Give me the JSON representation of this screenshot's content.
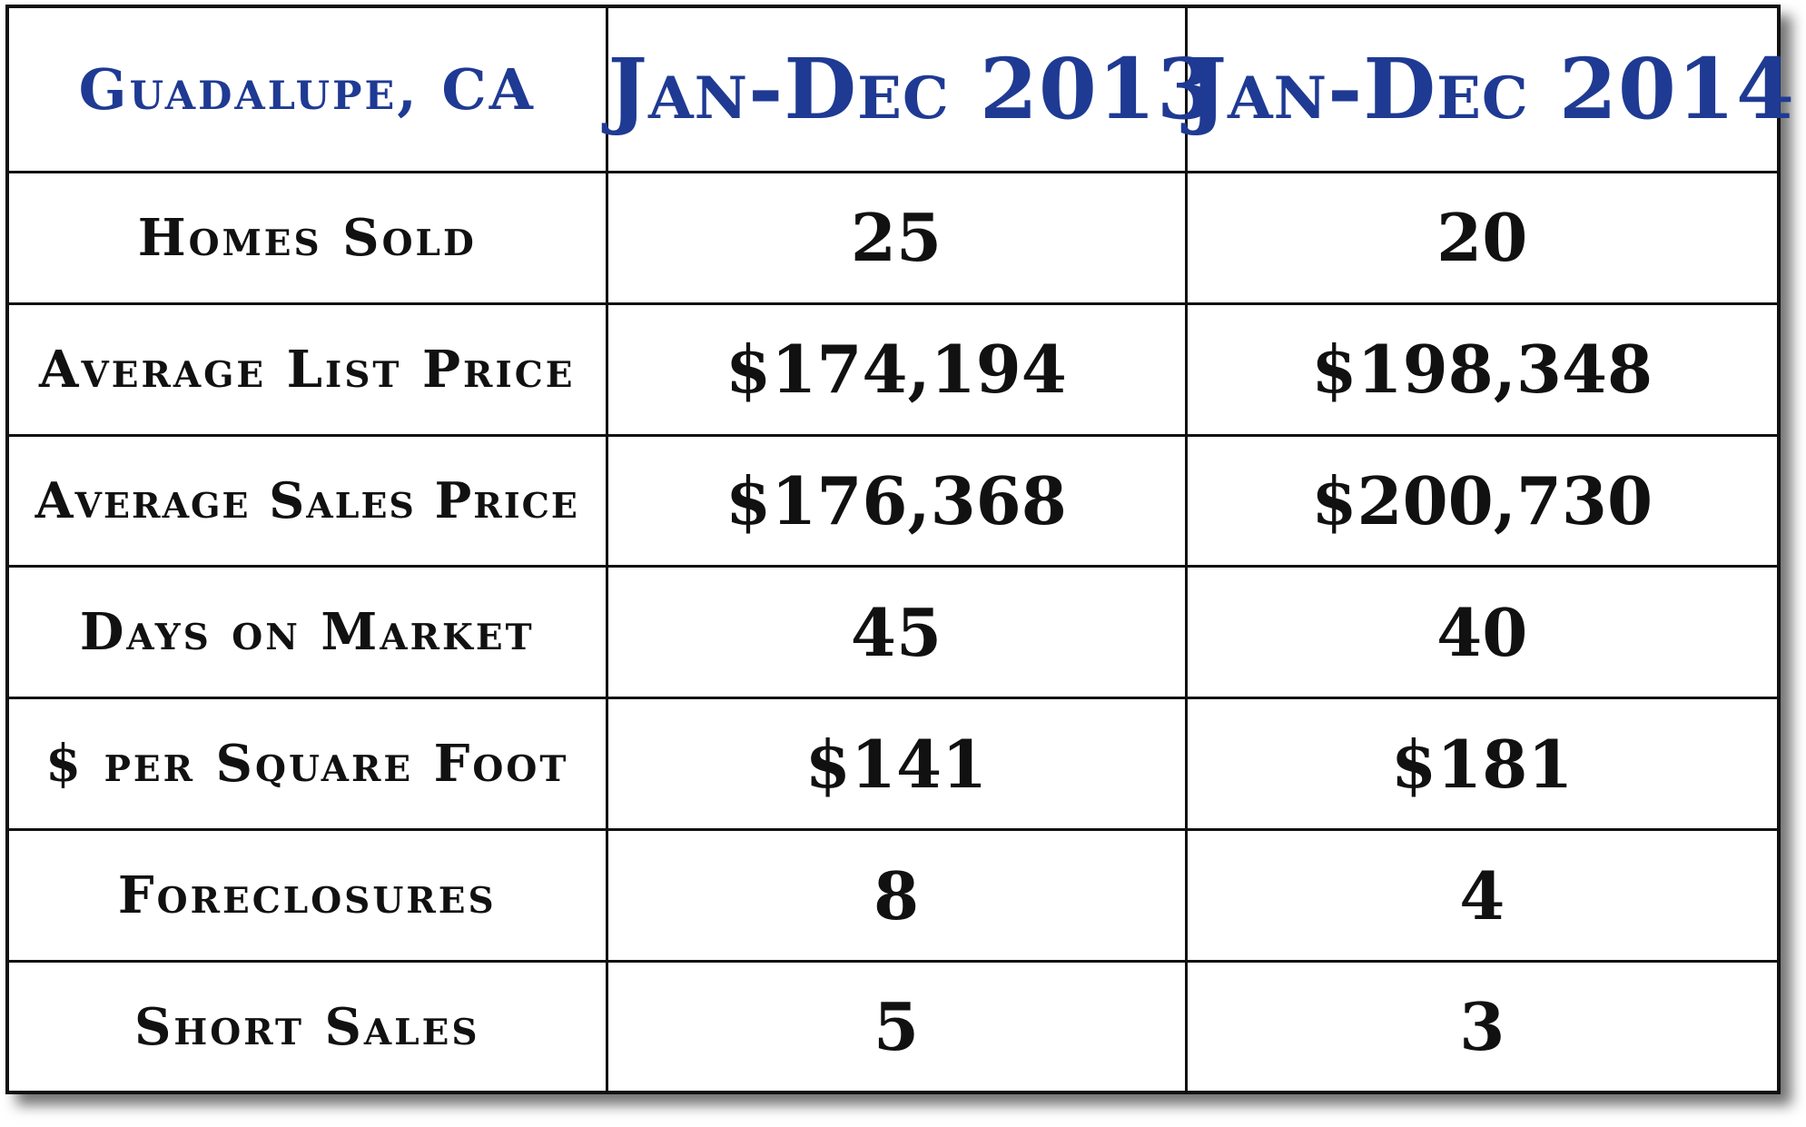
{
  "chart_data": {
    "type": "table",
    "title": "",
    "columns": [
      "Guadalupe, CA",
      "Jan-Dec 2013",
      "Jan-Dec 2014"
    ],
    "rows": [
      {
        "label": "Homes Sold",
        "values": [
          "25",
          "20"
        ]
      },
      {
        "label": "Average List Price",
        "values": [
          "$174,194",
          "$198,348"
        ]
      },
      {
        "label": "Average Sales Price",
        "values": [
          "$176,368",
          "$200,730"
        ]
      },
      {
        "label": "Days on Market",
        "values": [
          "45",
          "40"
        ]
      },
      {
        "label": "$ per Square Foot",
        "values": [
          "$141",
          "$181"
        ]
      },
      {
        "label": "Foreclosures",
        "values": [
          "8",
          "4"
        ]
      },
      {
        "label": "Short Sales",
        "values": [
          "5",
          "3"
        ]
      }
    ]
  },
  "colors": {
    "header_text": "#1f3a93",
    "body_text": "#111111",
    "border": "#111111",
    "background": "#ffffff"
  }
}
